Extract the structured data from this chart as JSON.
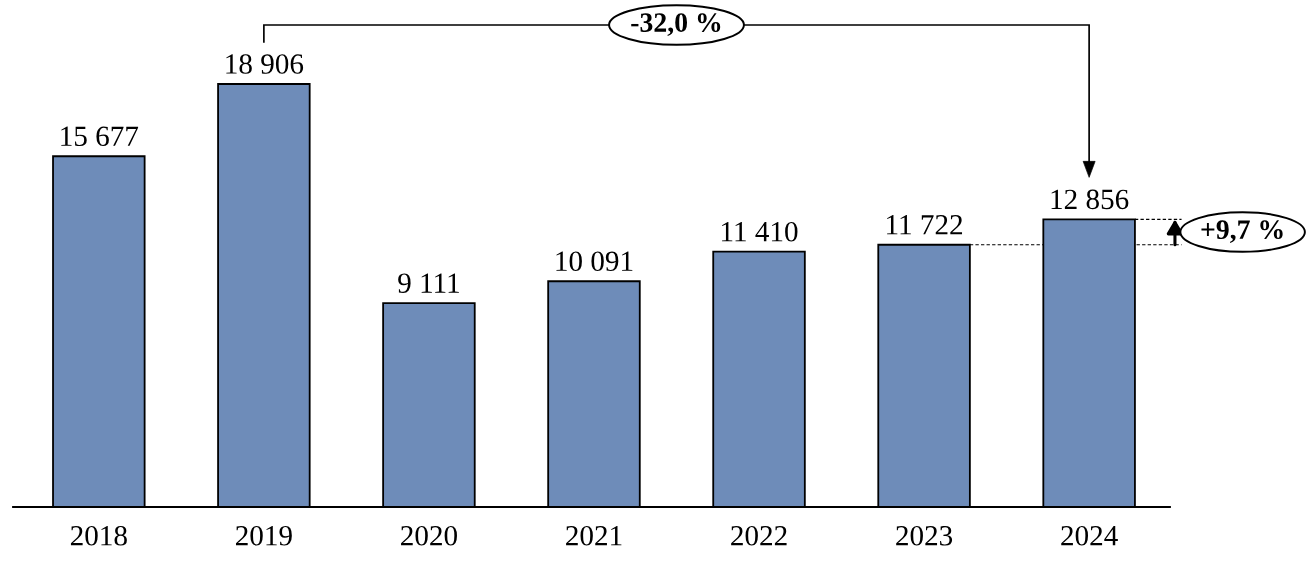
{
  "chart_data": {
    "type": "bar",
    "categories": [
      "2018",
      "2019",
      "2020",
      "2021",
      "2022",
      "2023",
      "2024"
    ],
    "values": [
      15677,
      18906,
      9111,
      10091,
      11410,
      11722,
      12856
    ],
    "value_labels": [
      "15 677",
      "18 906",
      "9 111",
      "10 091",
      "11 410",
      "11 722",
      "12 856"
    ],
    "color": "#6e8cb9",
    "annotations": [
      "-32,0 %",
      "+9,7 %"
    ]
  }
}
